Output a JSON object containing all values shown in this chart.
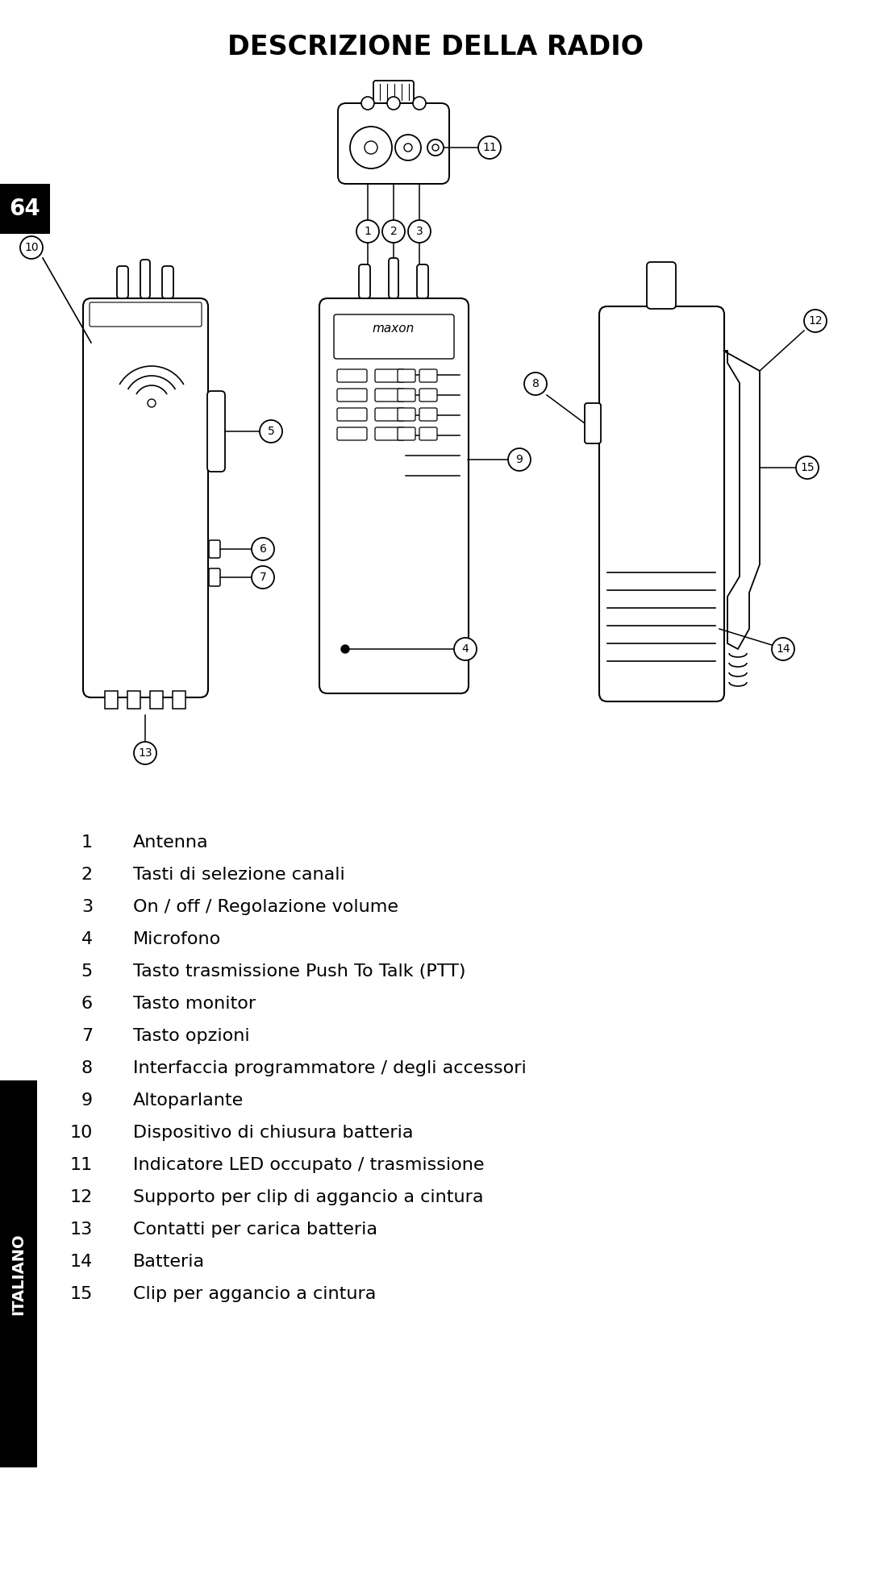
{
  "title": "DESCRIZIONE DELLA RADIO",
  "title_fontsize": 24,
  "title_fontweight": "bold",
  "background_color": "#ffffff",
  "page_number": "64",
  "sidebar_label": "ITALIANO",
  "items": [
    {
      "num": "1",
      "text": "Antenna"
    },
    {
      "num": "2",
      "text": "Tasti di selezione canali"
    },
    {
      "num": "3",
      "text": "On / off / Regolazione volume"
    },
    {
      "num": "4",
      "text": "Microfono"
    },
    {
      "num": "5",
      "text": "Tasto trasmissione Push To Talk (PTT)"
    },
    {
      "num": "6",
      "text": "Tasto monitor"
    },
    {
      "num": "7",
      "text": "Tasto opzioni"
    },
    {
      "num": "8",
      "text": "Interfaccia programmatore / degli accessori"
    },
    {
      "num": "9",
      "text": "Altoparlante"
    },
    {
      "num": "10",
      "text": "Dispositivo di chiusura batteria"
    },
    {
      "num": "11",
      "text": "Indicatore LED occupato / trasmissione"
    },
    {
      "num": "12",
      "text": "Supporto per clip di aggancio a cintura"
    },
    {
      "num": "13",
      "text": "Contatti per carica batteria"
    },
    {
      "num": "14",
      "text": "Batteria"
    },
    {
      "num": "15",
      "text": "Clip per aggancio a cintura"
    }
  ],
  "list_fontsize": 16
}
